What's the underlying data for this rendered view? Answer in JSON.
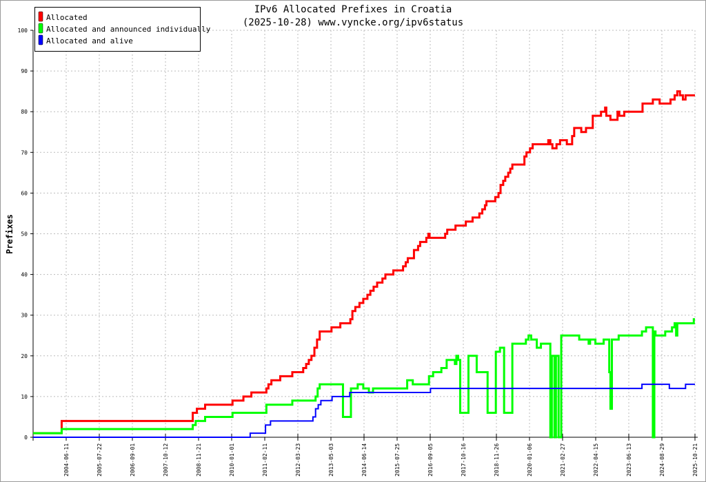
{
  "chart_data": {
    "type": "line",
    "title": "IPv6 Allocated Prefixes in Croatia",
    "subtitle": "(2025-10-28) www.vyncke.org/ipv6status",
    "xlabel": "",
    "ylabel": "Prefixes",
    "xlim": [
      2003.33,
      2025.8
    ],
    "ylim": [
      0,
      100
    ],
    "yticks": [
      0,
      10,
      20,
      30,
      40,
      50,
      60,
      70,
      80,
      90,
      100
    ],
    "xtick_labels": [
      "2004-06-11",
      "2005-07-22",
      "2006-09-01",
      "2007-10-12",
      "2008-11-21",
      "2010-01-01",
      "2011-02-11",
      "2012-03-23",
      "2013-05-03",
      "2014-06-14",
      "2015-07-25",
      "2016-09-05",
      "2017-10-16",
      "2018-11-26",
      "2020-01-06",
      "2021-02-27",
      "2022-04-15",
      "2023-06-13",
      "2024-08-29",
      "2025-10-21"
    ],
    "grid": true,
    "legend_position": "top-left",
    "series": [
      {
        "name": "Allocated",
        "color": "#ff0000",
        "step": true,
        "points": [
          [
            2003.33,
            1
          ],
          [
            2004.3,
            4
          ],
          [
            2008.75,
            6
          ],
          [
            2008.89,
            7
          ],
          [
            2009.17,
            8
          ],
          [
            2010.1,
            9
          ],
          [
            2010.47,
            10
          ],
          [
            2010.74,
            11
          ],
          [
            2011.25,
            12
          ],
          [
            2011.32,
            13
          ],
          [
            2011.42,
            14
          ],
          [
            2011.72,
            15
          ],
          [
            2012.13,
            16
          ],
          [
            2012.5,
            17
          ],
          [
            2012.6,
            18
          ],
          [
            2012.69,
            19
          ],
          [
            2012.78,
            20
          ],
          [
            2012.88,
            22
          ],
          [
            2012.97,
            24
          ],
          [
            2013.06,
            26
          ],
          [
            2013.46,
            27
          ],
          [
            2013.76,
            28
          ],
          [
            2014.1,
            29
          ],
          [
            2014.17,
            31
          ],
          [
            2014.27,
            32
          ],
          [
            2014.41,
            33
          ],
          [
            2014.54,
            34
          ],
          [
            2014.68,
            35
          ],
          [
            2014.78,
            36
          ],
          [
            2014.89,
            37
          ],
          [
            2015.01,
            38
          ],
          [
            2015.19,
            39
          ],
          [
            2015.29,
            40
          ],
          [
            2015.56,
            41
          ],
          [
            2015.89,
            42
          ],
          [
            2015.98,
            43
          ],
          [
            2016.05,
            44
          ],
          [
            2016.26,
            46
          ],
          [
            2016.4,
            47
          ],
          [
            2016.47,
            48
          ],
          [
            2016.68,
            49
          ],
          [
            2016.75,
            50
          ],
          [
            2016.79,
            49
          ],
          [
            2017.32,
            50
          ],
          [
            2017.39,
            51
          ],
          [
            2017.67,
            52
          ],
          [
            2018.02,
            53
          ],
          [
            2018.25,
            54
          ],
          [
            2018.48,
            55
          ],
          [
            2018.58,
            56
          ],
          [
            2018.67,
            57
          ],
          [
            2018.72,
            58
          ],
          [
            2019.02,
            59
          ],
          [
            2019.13,
            60
          ],
          [
            2019.2,
            62
          ],
          [
            2019.29,
            63
          ],
          [
            2019.36,
            64
          ],
          [
            2019.46,
            65
          ],
          [
            2019.53,
            66
          ],
          [
            2019.6,
            67
          ],
          [
            2020.01,
            69
          ],
          [
            2020.08,
            70
          ],
          [
            2020.2,
            71
          ],
          [
            2020.29,
            72
          ],
          [
            2020.82,
            73
          ],
          [
            2020.89,
            72
          ],
          [
            2020.96,
            71
          ],
          [
            2021.1,
            72
          ],
          [
            2021.22,
            73
          ],
          [
            2021.45,
            72
          ],
          [
            2021.63,
            74
          ],
          [
            2021.7,
            76
          ],
          [
            2021.94,
            75
          ],
          [
            2022.1,
            76
          ],
          [
            2022.33,
            79
          ],
          [
            2022.61,
            80
          ],
          [
            2022.75,
            81
          ],
          [
            2022.79,
            79
          ],
          [
            2022.93,
            78
          ],
          [
            2023.17,
            80
          ],
          [
            2023.23,
            79
          ],
          [
            2023.4,
            80
          ],
          [
            2024.02,
            82
          ],
          [
            2024.37,
            83
          ],
          [
            2024.6,
            82
          ],
          [
            2024.97,
            83
          ],
          [
            2025.11,
            84
          ],
          [
            2025.2,
            85
          ],
          [
            2025.29,
            84
          ],
          [
            2025.39,
            83
          ],
          [
            2025.48,
            84
          ],
          [
            2025.8,
            84
          ]
        ]
      },
      {
        "name": "Allocated and announced individually",
        "color": "#00ff00",
        "step": true,
        "points": [
          [
            2003.33,
            1
          ],
          [
            2004.3,
            2
          ],
          [
            2008.75,
            3
          ],
          [
            2008.85,
            4
          ],
          [
            2009.17,
            5
          ],
          [
            2010.1,
            6
          ],
          [
            2011.25,
            8
          ],
          [
            2012.13,
            9
          ],
          [
            2012.92,
            10
          ],
          [
            2012.99,
            12
          ],
          [
            2013.06,
            13
          ],
          [
            2013.85,
            5
          ],
          [
            2014.12,
            12
          ],
          [
            2014.35,
            13
          ],
          [
            2014.54,
            12
          ],
          [
            2014.73,
            11
          ],
          [
            2014.87,
            12
          ],
          [
            2015.98,
            12
          ],
          [
            2016.03,
            14
          ],
          [
            2016.22,
            13
          ],
          [
            2016.77,
            15
          ],
          [
            2016.91,
            16
          ],
          [
            2017.19,
            17
          ],
          [
            2017.37,
            19
          ],
          [
            2017.65,
            18
          ],
          [
            2017.7,
            20
          ],
          [
            2017.76,
            19
          ],
          [
            2017.83,
            6
          ],
          [
            2018.11,
            20
          ],
          [
            2018.39,
            16
          ],
          [
            2018.76,
            6
          ],
          [
            2019.04,
            21
          ],
          [
            2019.18,
            22
          ],
          [
            2019.32,
            6
          ],
          [
            2019.6,
            23
          ],
          [
            2020.06,
            24
          ],
          [
            2020.15,
            25
          ],
          [
            2020.24,
            24
          ],
          [
            2020.43,
            22
          ],
          [
            2020.57,
            23
          ],
          [
            2020.89,
            0
          ],
          [
            2020.94,
            20
          ],
          [
            2021.03,
            0
          ],
          [
            2021.08,
            20
          ],
          [
            2021.17,
            0
          ],
          [
            2021.26,
            25
          ],
          [
            2021.87,
            24
          ],
          [
            2022.19,
            23
          ],
          [
            2022.24,
            24
          ],
          [
            2022.42,
            23
          ],
          [
            2022.7,
            24
          ],
          [
            2022.89,
            16
          ],
          [
            2022.93,
            7
          ],
          [
            2022.98,
            24
          ],
          [
            2023.21,
            25
          ],
          [
            2024.0,
            26
          ],
          [
            2024.14,
            27
          ],
          [
            2024.37,
            0
          ],
          [
            2024.42,
            26
          ],
          [
            2024.46,
            25
          ],
          [
            2024.79,
            26
          ],
          [
            2025.02,
            27
          ],
          [
            2025.11,
            28
          ],
          [
            2025.16,
            25
          ],
          [
            2025.2,
            28
          ],
          [
            2025.48,
            28
          ],
          [
            2025.76,
            29
          ],
          [
            2025.8,
            29
          ]
        ]
      },
      {
        "name": "Allocated and alive",
        "color": "#0000ff",
        "step": true,
        "points": [
          [
            2003.33,
            0
          ],
          [
            2010.7,
            1
          ],
          [
            2011.22,
            3
          ],
          [
            2011.39,
            4
          ],
          [
            2012.83,
            5
          ],
          [
            2012.92,
            7
          ],
          [
            2013.01,
            8
          ],
          [
            2013.1,
            9
          ],
          [
            2013.48,
            10
          ],
          [
            2014.08,
            11
          ],
          [
            2016.82,
            12
          ],
          [
            2024.0,
            13
          ],
          [
            2024.93,
            12
          ],
          [
            2025.48,
            13
          ],
          [
            2025.8,
            13
          ]
        ]
      }
    ]
  }
}
